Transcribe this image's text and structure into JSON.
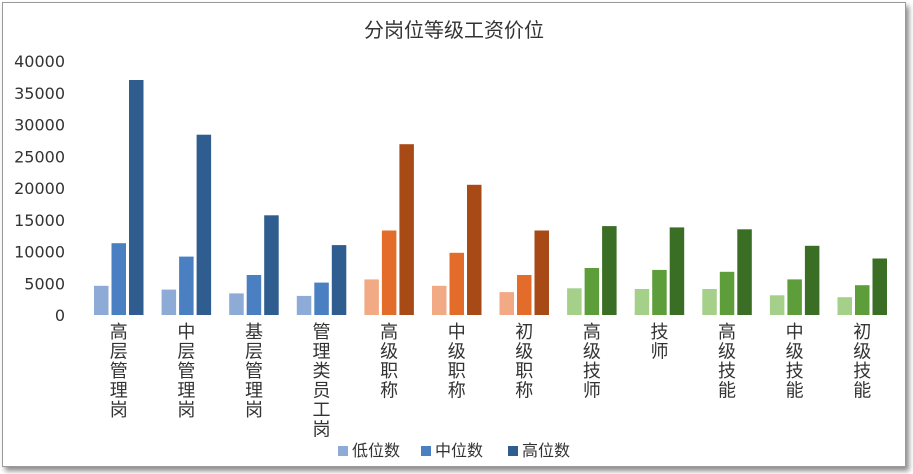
{
  "chart_data": {
    "type": "bar",
    "title": "分岗位等级工资价位",
    "xlabel": "",
    "ylabel": "",
    "ylim": [
      0,
      40000
    ],
    "yticks": [
      0,
      5000,
      10000,
      15000,
      20000,
      25000,
      30000,
      35000,
      40000
    ],
    "grid": false,
    "legend_position": "bottom",
    "categories": [
      "高层管理岗",
      "中层管理岗",
      "基层管理岗",
      "管理类员工岗",
      "高级职称",
      "中级职称",
      "初级职称",
      "高级技师",
      "技师",
      "高级技能",
      "中级技能",
      "初级技能"
    ],
    "series": [
      {
        "name": "低位数",
        "values": [
          4600,
          4000,
          3400,
          3000,
          5600,
          4600,
          3600,
          4200,
          4100,
          4100,
          3100,
          2800
        ]
      },
      {
        "name": "中位数",
        "values": [
          11300,
          9200,
          6300,
          5100,
          13300,
          9800,
          6300,
          7400,
          7100,
          6800,
          5600,
          4700
        ]
      },
      {
        "name": "高位数",
        "values": [
          37000,
          28400,
          15700,
          11000,
          26900,
          20500,
          13300,
          14000,
          13800,
          13500,
          10900,
          8900
        ]
      }
    ],
    "group_colors": [
      {
        "groups": "管理岗",
        "low": "#8eaad6",
        "mid": "#4a7fc1",
        "high": "#2f5d8f"
      },
      {
        "groups": "职称",
        "low": "#f2aa84",
        "mid": "#e46c2b",
        "high": "#a84a16"
      },
      {
        "groups": "技能",
        "low": "#a5d08a",
        "mid": "#5e9e3a",
        "high": "#3a6e24"
      }
    ],
    "legend_colors": [
      "#8eaad6",
      "#4a7fc1",
      "#2f5d8f"
    ]
  }
}
